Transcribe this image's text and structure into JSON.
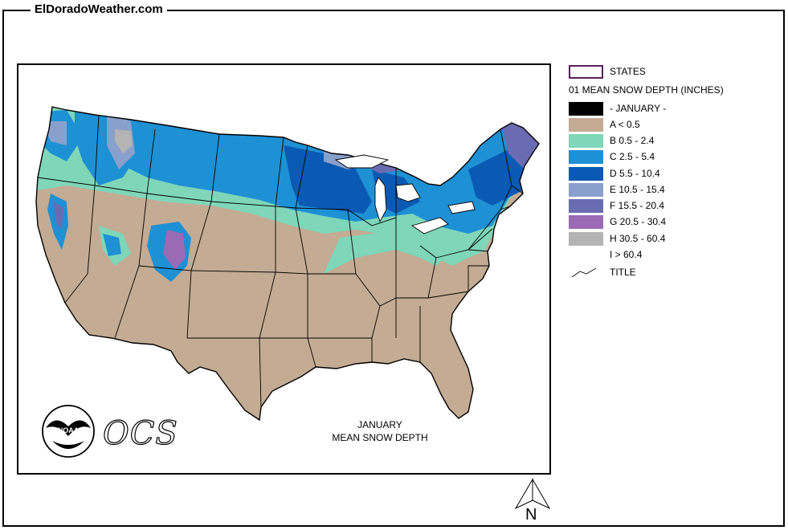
{
  "header": {
    "site_title": "ElDoradoWeather.com"
  },
  "legend": {
    "states_label": "STATES",
    "header": "01 MEAN SNOW DEPTH (INCHES)",
    "items": [
      {
        "label": "- JANUARY -",
        "color": "#000000"
      },
      {
        "label": "A < 0.5",
        "color": "#c4ab93"
      },
      {
        "label": "B 0.5 - 2.4",
        "color": "#7fd6b9"
      },
      {
        "label": "C 2.5 - 5.4",
        "color": "#1e90d4"
      },
      {
        "label": "D 5.5 - 10.4",
        "color": "#0a5ab4"
      },
      {
        "label": "E 10.5 - 15.4",
        "color": "#8aa0cc"
      },
      {
        "label": "F 15.5 - 20.4",
        "color": "#6a6cb2"
      },
      {
        "label": "G 20.5 - 30.4",
        "color": "#9a6ab4"
      },
      {
        "label": "H 30.5 - 60.4",
        "color": "#b4b4b4"
      },
      {
        "label": "I > 60.4",
        "color": "#ffffff"
      }
    ],
    "title_label": "TITLE"
  },
  "map": {
    "caption_line1": "JANUARY",
    "caption_line2": "MEAN SNOW DEPTH",
    "logo_text": "NOAA",
    "ocs_text": "OCS"
  },
  "north_arrow": {
    "label": "N"
  }
}
